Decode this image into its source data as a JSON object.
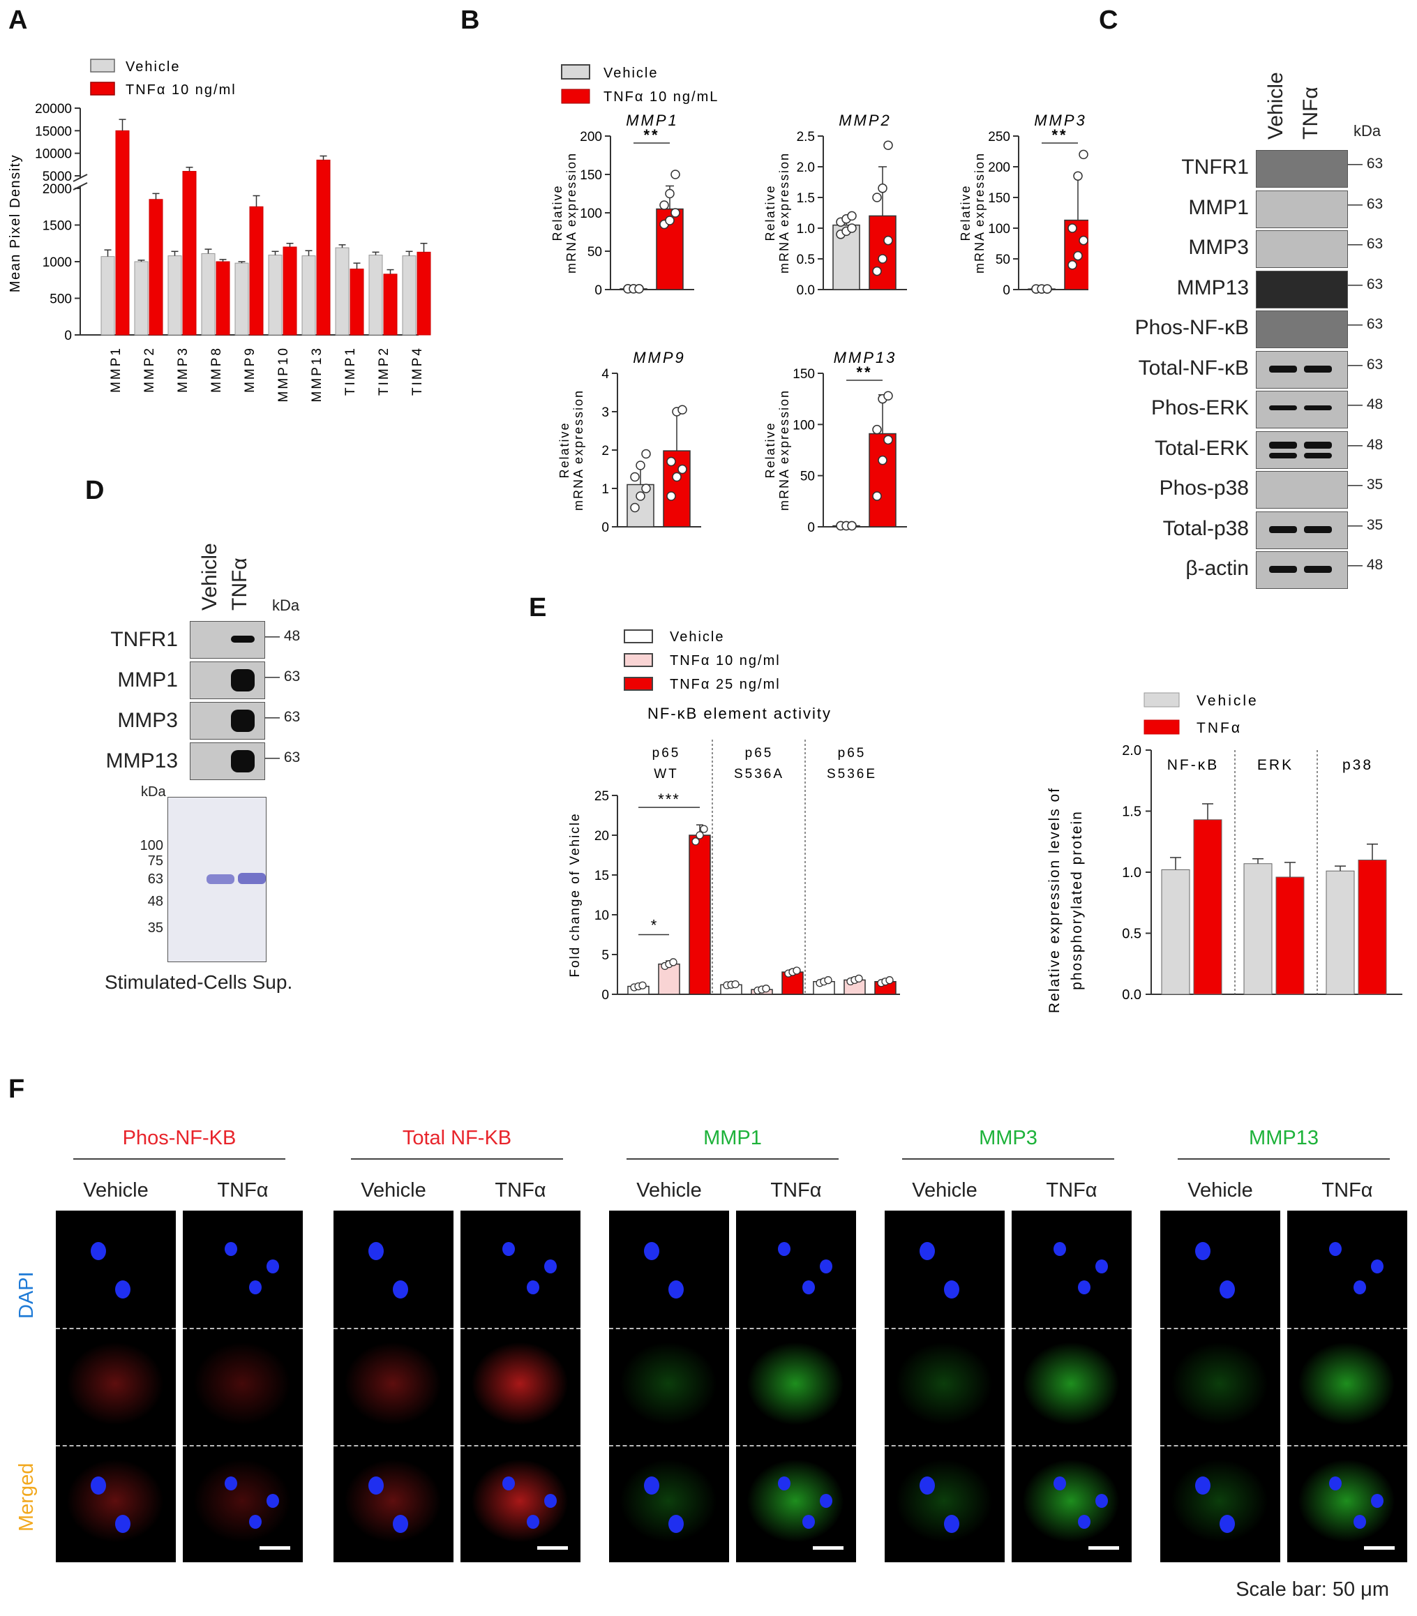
{
  "panel_labels": {
    "A": "A",
    "B": "B",
    "C": "C",
    "D": "D",
    "E": "E",
    "F": "F"
  },
  "colors": {
    "vehicle": "#d9d9d9",
    "tnf": "#ee0000",
    "tnf10_light": "#f9d4d4",
    "red_text": "#e8242b",
    "green_text": "#1db23a",
    "dapi_text": "#1e7ad6",
    "merged_text": "#f2a81d"
  },
  "chart_data": [
    {
      "id": "A",
      "type": "bar",
      "ylabel": "Mean Pixel Density",
      "legend": [
        "Vehicle",
        "TNFα  10 ng/ml"
      ],
      "categories": [
        "MMP1",
        "MMP2",
        "MMP3",
        "MMP8",
        "MMP9",
        "MMP10",
        "MMP13",
        "TIMP1",
        "TIMP2",
        "TIMP4"
      ],
      "series": [
        {
          "name": "Vehicle",
          "values": [
            1070,
            1000,
            1080,
            1110,
            980,
            1090,
            1080,
            1190,
            1090,
            1080
          ],
          "err": [
            90,
            20,
            60,
            60,
            20,
            50,
            70,
            40,
            40,
            60
          ]
        },
        {
          "name": "TNFα  10 ng/ml",
          "values": [
            15000,
            1850,
            6000,
            1000,
            1750,
            1200,
            8500,
            900,
            830,
            1130
          ],
          "err": [
            2500,
            80,
            900,
            30,
            150,
            50,
            900,
            80,
            60,
            120
          ]
        }
      ],
      "ylim": [
        0,
        20000
      ],
      "yticks_lower": [
        "0",
        "500",
        "1000",
        "1500",
        "2000"
      ],
      "yticks_upper": [
        "5000",
        "10000",
        "15000",
        "20000"
      ],
      "axis_break": [
        2000,
        5000
      ]
    },
    {
      "id": "B",
      "type": "bar",
      "legend": [
        "Vehicle",
        "TNFα 10 ng/mL"
      ],
      "ylabel_line1": "Relative",
      "ylabel_line2": "mRNA expression",
      "subplots": [
        {
          "title": "MMP1",
          "ylim": [
            0,
            200
          ],
          "yticks": [
            "0",
            "50",
            "100",
            "150",
            "200"
          ],
          "values": [
            1,
            105
          ],
          "err": [
            1,
            30
          ],
          "sig": "**",
          "points": [
            [
              1,
              1,
              1,
              1,
              1,
              1
            ],
            [
              85,
              90,
              100,
              110,
              125,
              150
            ]
          ]
        },
        {
          "title": "MMP2",
          "ylim": [
            0,
            2.5
          ],
          "yticks": [
            "0.0",
            "0.5",
            "1.0",
            "1.5",
            "2.0",
            "2.5"
          ],
          "values": [
            1.05,
            1.2
          ],
          "err": [
            0.12,
            0.8
          ],
          "sig": "",
          "points": [
            [
              0.9,
              0.95,
              1.0,
              1.1,
              1.15,
              1.2
            ],
            [
              0.3,
              0.5,
              0.8,
              1.5,
              1.65,
              2.35
            ]
          ]
        },
        {
          "title": "MMP3",
          "ylim": [
            0,
            250
          ],
          "yticks": [
            "0",
            "50",
            "100",
            "150",
            "200",
            "250"
          ],
          "values": [
            1,
            113
          ],
          "err": [
            1,
            72
          ],
          "sig": "**",
          "points": [
            [
              1,
              1,
              1,
              1,
              1,
              1
            ],
            [
              40,
              55,
              80,
              100,
              185,
              220
            ]
          ]
        },
        {
          "title": "MMP9",
          "ylim": [
            0,
            4
          ],
          "yticks": [
            "0",
            "1",
            "2",
            "3",
            "4"
          ],
          "values": [
            1.1,
            1.98
          ],
          "err": [
            0.5,
            1.05
          ],
          "sig": "",
          "points": [
            [
              0.5,
              0.8,
              1.0,
              1.3,
              1.6,
              1.9
            ],
            [
              0.8,
              1.3,
              1.5,
              1.7,
              3.0,
              3.05
            ]
          ]
        },
        {
          "title": "MMP13",
          "ylim": [
            0,
            150
          ],
          "yticks": [
            "0",
            "50",
            "100",
            "150"
          ],
          "values": [
            1,
            91
          ],
          "err": [
            1,
            38
          ],
          "sig": "**",
          "points": [
            [
              1,
              1,
              1,
              1,
              1,
              1
            ],
            [
              30,
              65,
              85,
              95,
              125,
              128
            ]
          ]
        }
      ]
    },
    {
      "id": "E-left",
      "type": "bar",
      "title": "NF-κB element activity",
      "ylabel": "Fold change of Vehicle",
      "legend": [
        "Vehicle",
        "TNFα  10 ng/ml",
        "TNFα  25 ng/ml"
      ],
      "groups": [
        {
          "label_line1": "p65",
          "label_line2": "WT",
          "values": [
            1,
            3.8,
            20
          ],
          "err": [
            0.2,
            0.4,
            1.3
          ]
        },
        {
          "label_line1": "p65",
          "label_line2": "S536A",
          "values": [
            1.2,
            0.6,
            2.8
          ],
          "err": [
            0.1,
            0.2,
            0.3
          ]
        },
        {
          "label_line1": "p65",
          "label_line2": "S536E",
          "values": [
            1.6,
            1.8,
            1.6
          ],
          "err": [
            0.3,
            0.3,
            0.3
          ]
        }
      ],
      "ylim": [
        0,
        25
      ],
      "yticks": [
        "0",
        "5",
        "10",
        "15",
        "20",
        "25"
      ],
      "sig": [
        "*",
        "***"
      ]
    },
    {
      "id": "E-right",
      "type": "bar",
      "ylabel_line1": "Relative expression levels of",
      "ylabel_line2": "phosphorylated protein",
      "legend": [
        "Vehicle",
        "TNFα"
      ],
      "groups": [
        {
          "label": "NF-κB",
          "values": [
            1.02,
            1.43
          ],
          "err": [
            0.1,
            0.13
          ]
        },
        {
          "label": "ERK",
          "values": [
            1.07,
            0.96
          ],
          "err": [
            0.04,
            0.12
          ]
        },
        {
          "label": "p38",
          "values": [
            1.01,
            1.1
          ],
          "err": [
            0.04,
            0.13
          ]
        }
      ],
      "ylim": [
        0,
        2.0
      ],
      "yticks": [
        "0.0",
        "0.5",
        "1.0",
        "1.5",
        "2.0"
      ]
    }
  ],
  "western_C": {
    "col_headers": [
      "Vehicle",
      "TNFα"
    ],
    "kda_header": "kDa",
    "rows": [
      {
        "label": "TNFR1",
        "kda": "63"
      },
      {
        "label": "MMP1",
        "kda": "63"
      },
      {
        "label": "MMP3",
        "kda": "63"
      },
      {
        "label": "MMP13",
        "kda": "63"
      },
      {
        "label": "Phos-NF-κB",
        "kda": "63"
      },
      {
        "label": "Total-NF-κB",
        "kda": "63"
      },
      {
        "label": "Phos-ERK",
        "kda": "48"
      },
      {
        "label": "Total-ERK",
        "kda": "48"
      },
      {
        "label": "Phos-p38",
        "kda": "35"
      },
      {
        "label": "Total-p38",
        "kda": "35"
      },
      {
        "label": "β-actin",
        "kda": "48"
      }
    ]
  },
  "western_D": {
    "col_headers": [
      "Vehicle",
      "TNFα"
    ],
    "kda_header": "kDa",
    "rows": [
      {
        "label": "TNFR1",
        "kda": "48"
      },
      {
        "label": "MMP1",
        "kda": "63"
      },
      {
        "label": "MMP3",
        "kda": "63"
      },
      {
        "label": "MMP13",
        "kda": "63"
      }
    ],
    "gel_kda_header": "kDa",
    "gel_markers": [
      "100",
      "75",
      "63",
      "48",
      "35"
    ],
    "caption": "Stimulated-Cells Sup."
  },
  "panel_F": {
    "groups": [
      {
        "title": "Phos-NF-KB",
        "color": "red"
      },
      {
        "title": "Total NF-KB",
        "color": "red"
      },
      {
        "title": "MMP1",
        "color": "green"
      },
      {
        "title": "MMP3",
        "color": "green"
      },
      {
        "title": "MMP13",
        "color": "green"
      }
    ],
    "col_labels": [
      "Vehicle",
      "TNFα"
    ],
    "row_labels": [
      "DAPI",
      "Merged"
    ],
    "scale_bar": "Scale bar: 50 μm"
  }
}
